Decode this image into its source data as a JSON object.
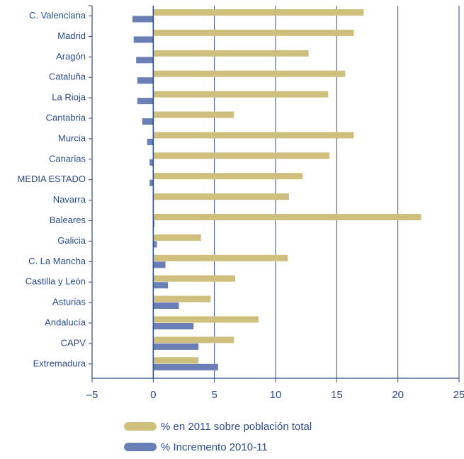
{
  "chart_data": {
    "type": "bar",
    "orientation": "horizontal",
    "title": "",
    "xlabel": "",
    "ylabel": "",
    "categories": [
      "C. Valenciana",
      "Madrid",
      "Aragón",
      "Cataluña",
      "La Rioja",
      "Cantabria",
      "Murcia",
      "Canarias",
      "MEDIA ESTADO",
      "Navarra",
      "Baleares",
      "Galicia",
      "C. La Mancha",
      "Castilla y León",
      "Asturias",
      "Andalucía",
      "CAPV",
      "Extremadura"
    ],
    "series": [
      {
        "name": "% en 2011 sobre población total",
        "color": "#cfbf7c",
        "values": [
          17.2,
          16.4,
          12.7,
          15.7,
          14.3,
          6.6,
          16.4,
          14.4,
          12.2,
          11.1,
          21.9,
          3.9,
          11.0,
          6.7,
          4.7,
          8.6,
          6.6,
          3.7
        ]
      },
      {
        "name": "% Incremento 2010-11",
        "color": "#6b7fb7",
        "values": [
          -1.7,
          -1.6,
          -1.4,
          -1.3,
          -1.3,
          -0.9,
          -0.5,
          -0.3,
          -0.3,
          0.0,
          0.1,
          0.3,
          1.0,
          1.2,
          2.1,
          3.3,
          3.7,
          5.3
        ]
      }
    ],
    "xlim": [
      -5,
      25
    ],
    "xticks": [
      -5,
      0,
      5,
      10,
      15,
      20,
      25
    ],
    "grid": "vertical",
    "legend_position": "bottom-center"
  }
}
